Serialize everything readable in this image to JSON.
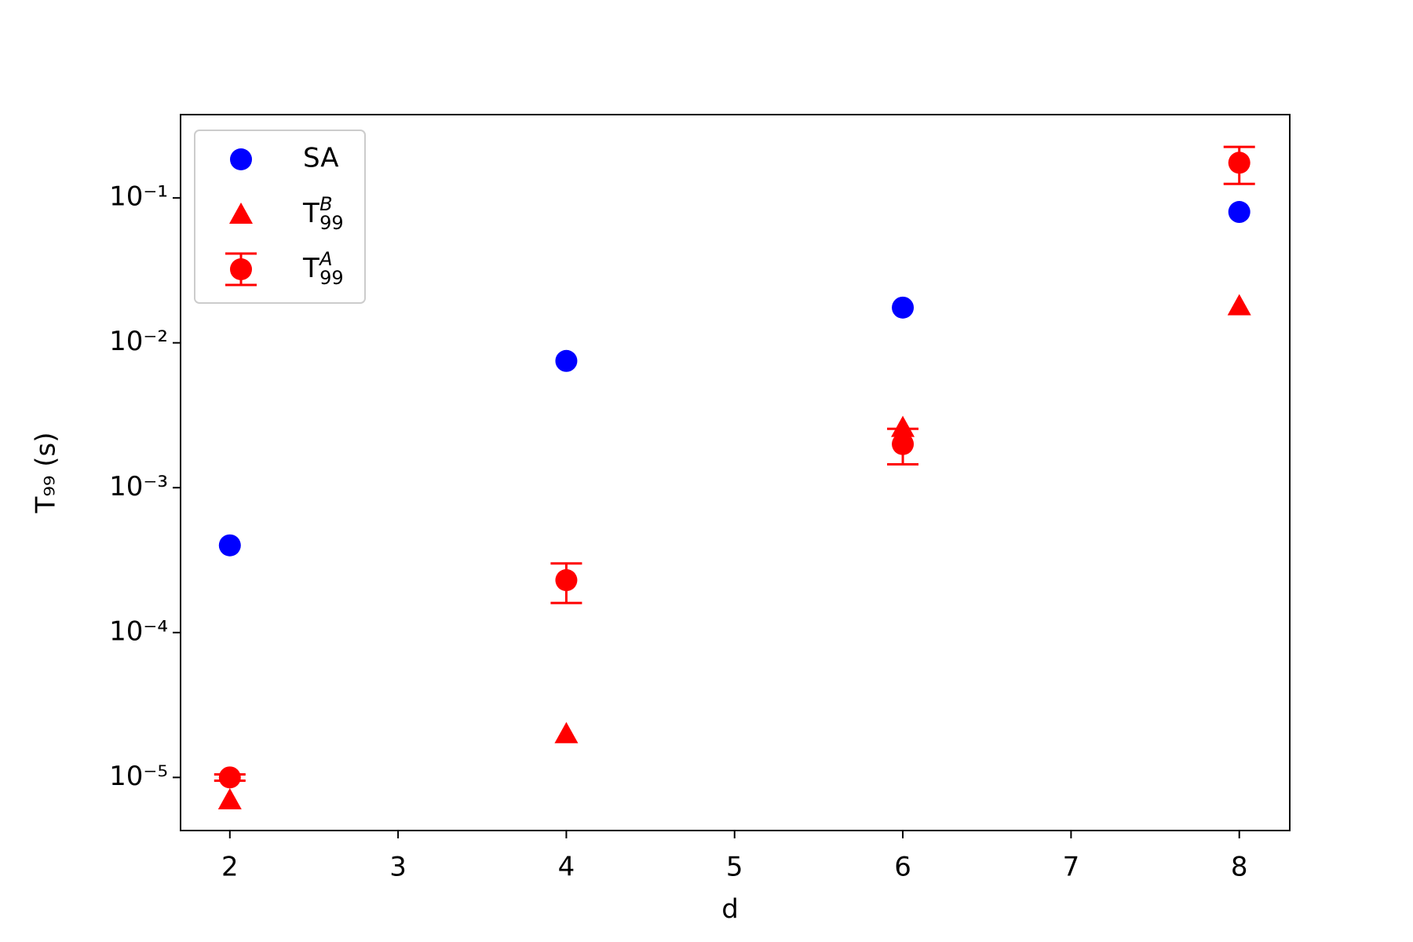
{
  "chart_data": {
    "type": "scatter",
    "xlabel": "d",
    "ylabel": "T₉₉ (s)",
    "x": [
      2,
      4,
      6,
      8
    ],
    "series": [
      {
        "name": "SA",
        "color": "#0000ff",
        "marker": "circle",
        "values": [
          0.0004,
          0.0075,
          0.0175,
          0.08
        ]
      },
      {
        "name": "T_99^B",
        "color": "#ff0000",
        "marker": "triangle",
        "values": [
          7e-06,
          2e-05,
          0.0026,
          0.018
        ]
      },
      {
        "name": "T_99^A",
        "color": "#ff0000",
        "marker": "circle",
        "values": [
          1e-05,
          0.00023,
          0.002,
          0.175
        ],
        "errors": [
          5e-07,
          7e-05,
          0.00055,
          0.05
        ]
      }
    ],
    "xlim": [
      1.707,
      8.3
    ],
    "xticks": [
      2,
      3,
      4,
      5,
      6,
      7,
      8
    ],
    "ylim": [
      4.3e-06,
      0.376
    ],
    "log_y": true,
    "yticks": [
      {
        "value": 1e-05,
        "label": "10⁻⁵"
      },
      {
        "value": 0.0001,
        "label": "10⁻⁴"
      },
      {
        "value": 0.001,
        "label": "10⁻³"
      },
      {
        "value": 0.01,
        "label": "10⁻²"
      },
      {
        "value": 0.1,
        "label": "10⁻¹"
      }
    ],
    "legend": "upper left"
  }
}
